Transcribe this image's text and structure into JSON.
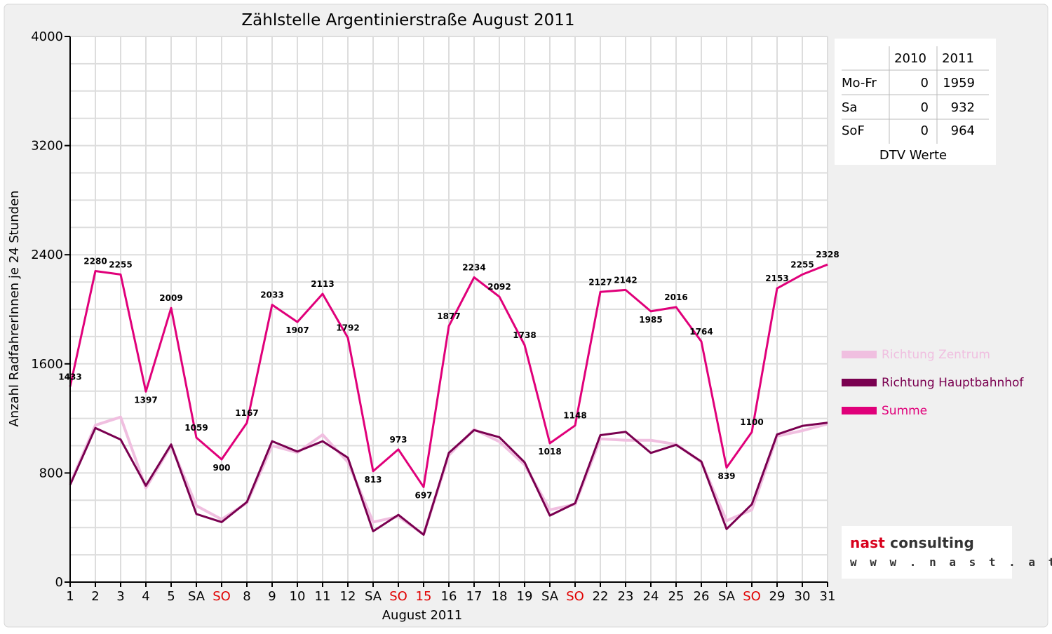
{
  "chart_data": {
    "type": "line",
    "title": "Zählstelle Argentinierstraße August 2011",
    "xlabel": "August 2011",
    "ylabel": "Anzahl RadfahrerInnen je 24 Stunden",
    "ylim": [
      0,
      4000
    ],
    "yticks": [
      0,
      800,
      1600,
      2400,
      3200,
      4000
    ],
    "categories": [
      "1",
      "2",
      "3",
      "4",
      "5",
      "SA",
      "SO",
      "8",
      "9",
      "10",
      "11",
      "12",
      "SA",
      "SO",
      "15",
      "16",
      "17",
      "18",
      "19",
      "SA",
      "SO",
      "22",
      "23",
      "24",
      "25",
      "26",
      "SA",
      "SO",
      "29",
      "30",
      "31"
    ],
    "red_categories": [
      "SO",
      "15"
    ],
    "grid": true,
    "legend_position": "right",
    "series": [
      {
        "name": "Richtung Zentrum",
        "color": "#f0bfe0",
        "values": [
          720,
          1150,
          1210,
          690,
          1000,
          560,
          460,
          580,
          1000,
          950,
          1080,
          880,
          440,
          480,
          350,
          930,
          1120,
          1030,
          860,
          530,
          570,
          1050,
          1040,
          1040,
          1010,
          880,
          450,
          530,
          1070,
          1110,
          1160
        ]
      },
      {
        "name": "Richtung Hauptbahnhof",
        "color": "#7a0050",
        "values": [
          713,
          1130,
          1045,
          707,
          1009,
          499,
          440,
          587,
          1033,
          957,
          1033,
          912,
          373,
          493,
          347,
          947,
          1114,
          1062,
          878,
          488,
          578,
          1077,
          1102,
          947,
          1006,
          884,
          389,
          570,
          1083,
          1145,
          1168
        ]
      },
      {
        "name": "Summe",
        "color": "#e0007a",
        "values": [
          1433,
          2280,
          2255,
          1397,
          2009,
          1059,
          900,
          1167,
          2033,
          1907,
          2113,
          1792,
          813,
          973,
          697,
          1877,
          2234,
          2092,
          1738,
          1018,
          1148,
          2127,
          2142,
          1985,
          2016,
          1764,
          839,
          1100,
          2153,
          2255,
          2328
        ]
      }
    ],
    "data_labels_series": "Summe"
  },
  "dtv_table": {
    "headers": [
      "",
      "2010",
      "2011"
    ],
    "rows": [
      {
        "label": "Mo-Fr",
        "v2010": "0",
        "v2011": "1959"
      },
      {
        "label": "Sa",
        "v2010": "0",
        "v2011": "932"
      },
      {
        "label": "SoF",
        "v2010": "0",
        "v2011": "964"
      }
    ],
    "caption": "DTV Werte"
  },
  "logo": {
    "brand_word1": "nast",
    "brand_word2": "consulting",
    "url": "w w w . n a s t . a t",
    "red": "#d8001c",
    "gray": "#333333"
  }
}
